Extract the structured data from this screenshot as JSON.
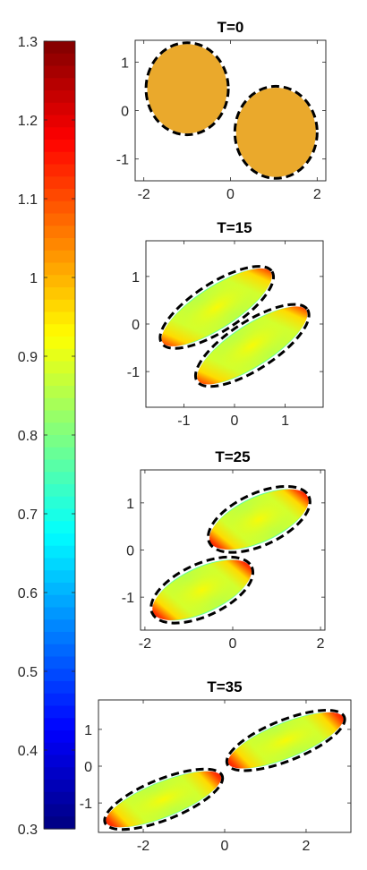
{
  "colorbar": {
    "min": 0.3,
    "max": 1.3,
    "tick_labels": [
      "1.3",
      "1.2",
      "1.1",
      "1",
      "0.9",
      "0.8",
      "0.7",
      "0.6",
      "0.5",
      "0.4",
      "0.3"
    ],
    "colormap": "jet"
  },
  "chart_data": [
    {
      "type": "heatmap",
      "title": "T=0",
      "xlim": [
        -2.2,
        2.2
      ],
      "ylim": [
        -1.45,
        1.45
      ],
      "xticks": [
        "-2",
        "0",
        "2"
      ],
      "yticks": [
        "1",
        "0",
        "-1"
      ],
      "xtick_values": [
        -2,
        0,
        2
      ],
      "ytick_values": [
        1,
        0,
        -1
      ],
      "ellipses": [
        {
          "cx": -1.0,
          "cy": 0.45,
          "rx": 0.95,
          "ry": 0.95,
          "rot": 0
        },
        {
          "cx": 1.05,
          "cy": -0.45,
          "rx": 0.95,
          "ry": 0.95,
          "rot": 0
        }
      ],
      "field": "uniform",
      "field_value": 1.0
    },
    {
      "type": "heatmap",
      "title": "T=15",
      "xlim": [
        -1.75,
        1.75
      ],
      "ylim": [
        -1.75,
        1.75
      ],
      "xticks": [
        "-1",
        "0",
        "1"
      ],
      "yticks": [
        "1",
        "0",
        "-1"
      ],
      "xtick_values": [
        -1,
        0,
        1
      ],
      "ytick_values": [
        1,
        0,
        -1
      ],
      "ellipses": [
        {
          "cx": -0.35,
          "cy": 0.35,
          "rx": 1.3,
          "ry": 0.5,
          "rot": -33
        },
        {
          "cx": 0.35,
          "cy": -0.45,
          "rx": 1.3,
          "ry": 0.5,
          "rot": -33
        }
      ],
      "field": "deformed",
      "field_range": [
        0.65,
        1.15
      ]
    },
    {
      "type": "heatmap",
      "title": "T=25",
      "xlim": [
        -2.1,
        2.1
      ],
      "ylim": [
        -1.7,
        1.7
      ],
      "xticks": [
        "-2",
        "0",
        "2"
      ],
      "yticks": [
        "1",
        "0",
        "-1"
      ],
      "xtick_values": [
        -2,
        0,
        2
      ],
      "ytick_values": [
        1,
        0,
        -1
      ],
      "ellipses": [
        {
          "cx": 0.6,
          "cy": 0.65,
          "rx": 1.25,
          "ry": 0.55,
          "rot": -25
        },
        {
          "cx": -0.7,
          "cy": -0.85,
          "rx": 1.25,
          "ry": 0.55,
          "rot": -25
        }
      ],
      "field": "deformed",
      "field_range": [
        0.65,
        1.15
      ]
    },
    {
      "type": "heatmap",
      "title": "T=35",
      "xlim": [
        -3.1,
        3.1
      ],
      "ylim": [
        -1.8,
        1.8
      ],
      "xticks": [
        "-2",
        "0",
        "2"
      ],
      "yticks": [
        "1",
        "0",
        "-1"
      ],
      "xtick_values": [
        -2,
        0,
        2
      ],
      "ytick_values": [
        1,
        0,
        -1
      ],
      "ellipses": [
        {
          "cx": 1.5,
          "cy": 0.7,
          "rx": 1.55,
          "ry": 0.55,
          "rot": -22
        },
        {
          "cx": -1.5,
          "cy": -0.9,
          "rx": 1.55,
          "ry": 0.55,
          "rot": -22
        }
      ],
      "field": "deformed",
      "field_range": [
        0.65,
        1.15
      ]
    }
  ]
}
